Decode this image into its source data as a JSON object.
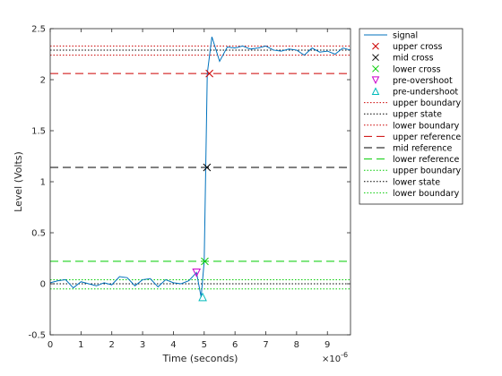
{
  "chart_data": {
    "type": "line",
    "xlabel": "Time (seconds)",
    "ylabel": "Level (Volts)",
    "x_exponent_label": "×10",
    "x_exponent_power": "-6",
    "xlim": [
      0,
      9.75
    ],
    "ylim": [
      -0.5,
      2.5
    ],
    "x_ticks": [
      0,
      1,
      2,
      3,
      4,
      5,
      6,
      7,
      8,
      9
    ],
    "y_ticks": [
      -0.5,
      0,
      0.5,
      1,
      1.5,
      2,
      2.5
    ],
    "x_tick_labels": [
      "0",
      "1",
      "2",
      "3",
      "4",
      "5",
      "6",
      "7",
      "8",
      "9"
    ],
    "y_tick_labels": [
      "-0.5",
      "0",
      "0.5",
      "1",
      "1.5",
      "2",
      "2.5"
    ],
    "grid": false,
    "legend_position": "outside-right",
    "series": [
      {
        "name": "signal",
        "color": "#0072BD",
        "x": [
          0,
          0.25,
          0.5,
          0.75,
          1.0,
          1.25,
          1.5,
          1.75,
          2.0,
          2.25,
          2.5,
          2.75,
          3.0,
          3.25,
          3.5,
          3.75,
          4.0,
          4.25,
          4.5,
          4.75,
          4.9,
          5.0,
          5.1,
          5.25,
          5.5,
          5.75,
          6.0,
          6.25,
          6.5,
          6.75,
          7.0,
          7.25,
          7.5,
          7.75,
          8.0,
          8.25,
          8.5,
          8.75,
          9.0,
          9.25,
          9.5,
          9.75
        ],
        "y": [
          0.01,
          0.03,
          0.04,
          -0.04,
          0.02,
          0.0,
          -0.02,
          0.01,
          -0.01,
          0.07,
          0.06,
          -0.02,
          0.04,
          0.05,
          -0.03,
          0.04,
          0.01,
          0.0,
          0.03,
          0.11,
          -0.13,
          0.22,
          2.06,
          2.42,
          2.18,
          2.32,
          2.31,
          2.33,
          2.3,
          2.31,
          2.33,
          2.29,
          2.28,
          2.3,
          2.29,
          2.24,
          2.31,
          2.27,
          2.28,
          2.25,
          2.31,
          2.29
        ]
      }
    ],
    "markers": [
      {
        "name": "upper cross",
        "symbol": "x",
        "color": "#CC0000",
        "x": 5.17,
        "y": 2.06
      },
      {
        "name": "mid cross",
        "symbol": "x",
        "color": "#000000",
        "x": 5.09,
        "y": 1.14
      },
      {
        "name": "lower cross",
        "symbol": "x",
        "color": "#00CC00",
        "x": 5.02,
        "y": 0.22
      },
      {
        "name": "pre-overshoot",
        "symbol": "triangle-down",
        "color": "#CC00CC",
        "x": 4.75,
        "y": 0.11
      },
      {
        "name": "pre-undershoot",
        "symbol": "triangle-up",
        "color": "#00BBBB",
        "x": 4.95,
        "y": -0.13
      }
    ],
    "reference_lines": [
      {
        "name": "upper boundary",
        "style": "dotted",
        "color": "#CC0000",
        "y": 2.33
      },
      {
        "name": "upper state",
        "style": "dotted",
        "color": "#000000",
        "y": 2.29
      },
      {
        "name": "lower boundary",
        "style": "dotted",
        "color": "#CC0000",
        "y": 2.24
      },
      {
        "name": "upper reference",
        "style": "dashed",
        "color": "#CC0000",
        "y": 2.06
      },
      {
        "name": "mid reference",
        "style": "dashed",
        "color": "#000000",
        "y": 1.14
      },
      {
        "name": "lower reference",
        "style": "dashed",
        "color": "#00CC00",
        "y": 0.22
      },
      {
        "name": "upper boundary",
        "style": "dotted",
        "color": "#00CC00",
        "y": 0.04
      },
      {
        "name": "lower state",
        "style": "dotted",
        "color": "#000000",
        "y": 0.0
      },
      {
        "name": "lower boundary",
        "style": "dotted",
        "color": "#00CC00",
        "y": -0.05
      }
    ]
  }
}
